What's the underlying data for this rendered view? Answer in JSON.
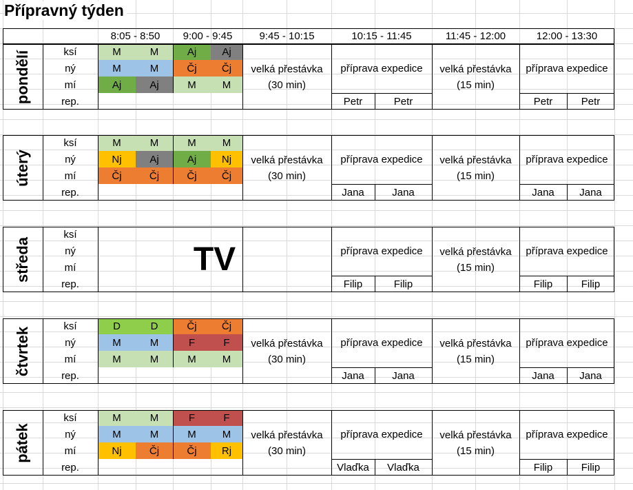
{
  "title": "Přípravný týden",
  "colors": {
    "M": "#c6e0b4",
    "Mb": "#9dc3e6",
    "Aj_green": "#70ad47",
    "Aj_gray": "#808080",
    "Cj": "#ed7d31",
    "Nj": "#ffc000",
    "D": "#8fce4a",
    "F": "#c0504d",
    "Rj": "#ffc000"
  },
  "times": [
    "8:05 - 8:50",
    "9:00 - 9:45",
    "9:45 - 10:15",
    "10:15 - 11:45",
    "11:45 - 12:00",
    "12:00 - 13:30"
  ],
  "row_labels": [
    "ksí",
    "ný",
    "mí",
    "rep."
  ],
  "break_30": [
    "velká přestávka",
    "(30 min)"
  ],
  "break_15": [
    "velká přestávka",
    "(15 min)"
  ],
  "prep": "příprava expedice",
  "days": [
    {
      "name": "pondělí",
      "lessons": [
        [
          {
            "t": "M",
            "c": "M"
          },
          {
            "t": "M",
            "c": "M"
          },
          {
            "t": "Aj",
            "c": "Aj_green"
          },
          {
            "t": "Aj",
            "c": "Aj_gray"
          }
        ],
        [
          {
            "t": "M",
            "c": "Mb"
          },
          {
            "t": "M",
            "c": "Mb"
          },
          {
            "t": "Čj",
            "c": "Cj"
          },
          {
            "t": "Čj",
            "c": "Cj"
          }
        ],
        [
          {
            "t": "Aj",
            "c": "Aj_green"
          },
          {
            "t": "Aj",
            "c": "Aj_gray"
          },
          {
            "t": "M",
            "c": "M"
          },
          {
            "t": "M",
            "c": "M"
          }
        ]
      ],
      "rep": [
        "Petr",
        "Petr",
        "Petr",
        "Petr"
      ]
    },
    {
      "name": "úterý",
      "lessons": [
        [
          {
            "t": "M",
            "c": "M"
          },
          {
            "t": "M",
            "c": "M"
          },
          {
            "t": "M",
            "c": "M"
          },
          {
            "t": "M",
            "c": "M"
          }
        ],
        [
          {
            "t": "Nj",
            "c": "Nj"
          },
          {
            "t": "Aj",
            "c": "Aj_gray"
          },
          {
            "t": "Aj",
            "c": "Aj_green"
          },
          {
            "t": "Nj",
            "c": "Nj"
          }
        ],
        [
          {
            "t": "Čj",
            "c": "Cj"
          },
          {
            "t": "Čj",
            "c": "Cj"
          },
          {
            "t": "Čj",
            "c": "Cj"
          },
          {
            "t": "Čj",
            "c": "Cj"
          }
        ]
      ],
      "rep": [
        "Jana",
        "Jana",
        "Jana",
        "Jana"
      ]
    },
    {
      "name": "středa",
      "tv": "TV",
      "rep": [
        "Filip",
        "Filip",
        "Filip",
        "Filip"
      ]
    },
    {
      "name": "čtvrtek",
      "lessons": [
        [
          {
            "t": "D",
            "c": "D"
          },
          {
            "t": "D",
            "c": "D"
          },
          {
            "t": "Čj",
            "c": "Cj"
          },
          {
            "t": "Čj",
            "c": "Cj"
          }
        ],
        [
          {
            "t": "M",
            "c": "Mb"
          },
          {
            "t": "M",
            "c": "Mb"
          },
          {
            "t": "F",
            "c": "F"
          },
          {
            "t": "F",
            "c": "F"
          }
        ],
        [
          {
            "t": "M",
            "c": "M"
          },
          {
            "t": "M",
            "c": "M"
          },
          {
            "t": "M",
            "c": "M"
          },
          {
            "t": "M",
            "c": "M"
          }
        ]
      ],
      "rep": [
        "Jana",
        "Jana",
        "Jana",
        "Jana"
      ]
    },
    {
      "name": "pátek",
      "lessons": [
        [
          {
            "t": "M",
            "c": "M"
          },
          {
            "t": "M",
            "c": "M"
          },
          {
            "t": "F",
            "c": "F"
          },
          {
            "t": "F",
            "c": "F"
          }
        ],
        [
          {
            "t": "M",
            "c": "Mb"
          },
          {
            "t": "M",
            "c": "Mb"
          },
          {
            "t": "M",
            "c": "Mb"
          },
          {
            "t": "M",
            "c": "Mb"
          }
        ],
        [
          {
            "t": "Nj",
            "c": "Nj"
          },
          {
            "t": "Čj",
            "c": "Cj"
          },
          {
            "t": "Čj",
            "c": "Cj"
          },
          {
            "t": "Rj",
            "c": "Rj"
          }
        ]
      ],
      "rep": [
        "Vlaďka",
        "Vlaďka",
        "Filip",
        "Filip"
      ]
    }
  ]
}
